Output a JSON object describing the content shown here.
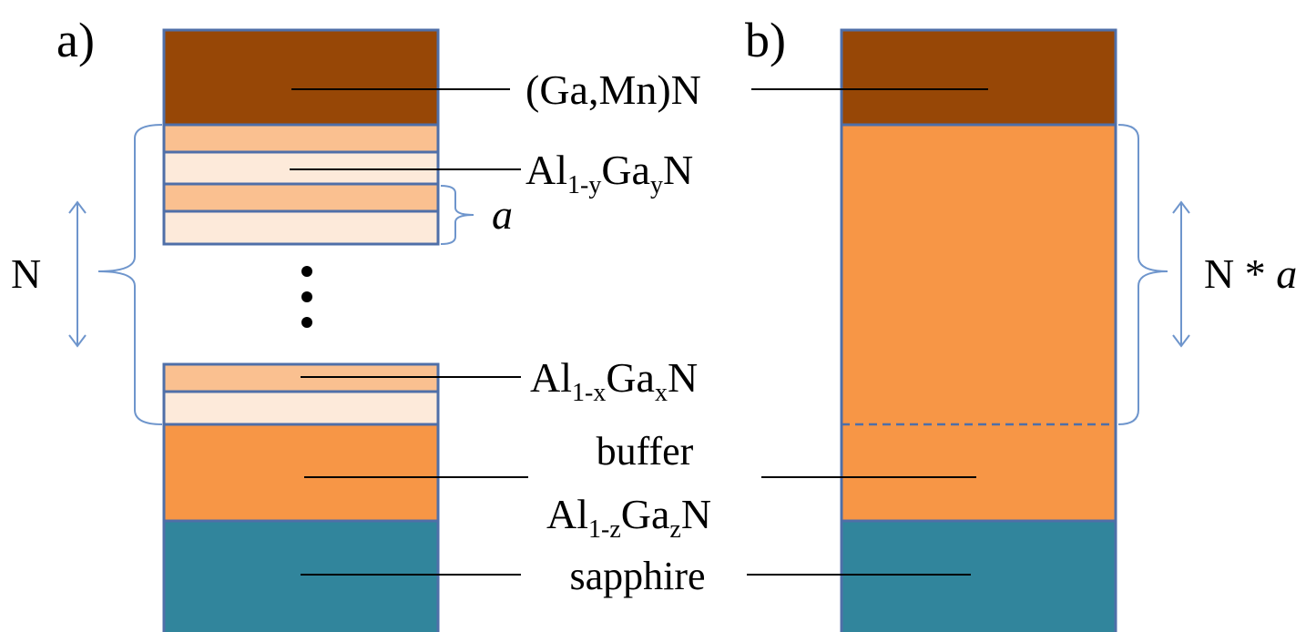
{
  "panels": {
    "a_label": "a)",
    "b_label": "b)"
  },
  "labels": {
    "gamnn": "(Ga,Mn)N",
    "aly": {
      "base": "Al",
      "sub1": "1-y",
      "mid": "Ga",
      "sub2": "y",
      "end": "N"
    },
    "alx": {
      "base": "Al",
      "sub1": "1-x",
      "mid": "Ga",
      "sub2": "x",
      "end": "N"
    },
    "buffer": "buffer",
    "alz": {
      "base": "Al",
      "sub1": "1-z",
      "mid": "Ga",
      "sub2": "z",
      "end": "N"
    },
    "sapphire": "sapphire",
    "period": "a",
    "n_left": "N",
    "n_right_prefix": "N * ",
    "n_right_italic": "a",
    "dots": "⋮"
  },
  "colors": {
    "gamnn": "#974706",
    "al_dark": "#FAC090",
    "al_light": "#FDEADA",
    "buffer": "#F79646",
    "sapphire": "#31859C",
    "outline": "#4F6FA8",
    "brace": "#6E95CC"
  }
}
